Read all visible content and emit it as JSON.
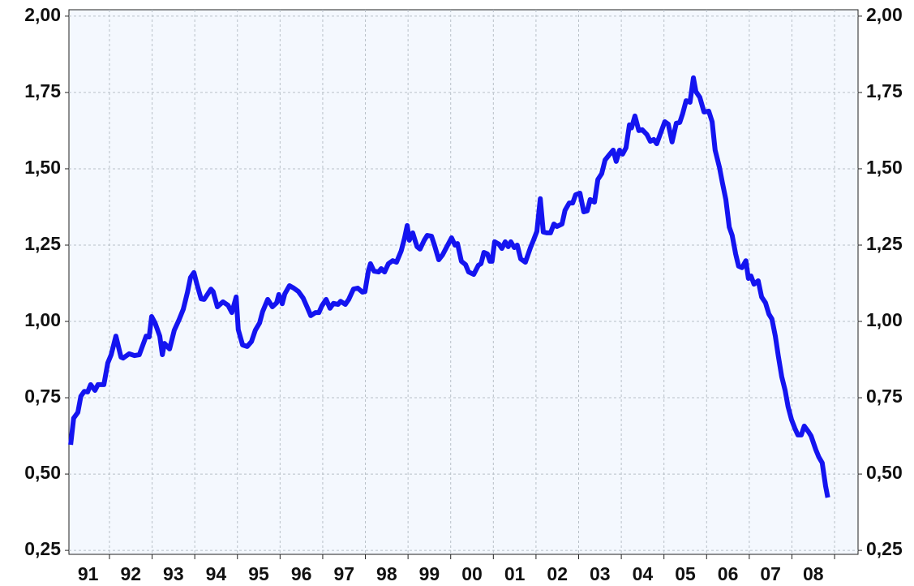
{
  "chart_data": {
    "type": "line",
    "x": [
      1991.09,
      1991.16,
      1991.26,
      1991.33,
      1991.41,
      1991.49,
      1991.56,
      1991.66,
      1991.73,
      1991.87,
      1991.96,
      1992.04,
      1992.15,
      1992.27,
      1992.32,
      1992.46,
      1992.59,
      1992.7,
      1992.86,
      1992.93,
      1992.99,
      1993.07,
      1993.18,
      1993.24,
      1993.29,
      1993.41,
      1993.52,
      1993.63,
      1993.73,
      1993.83,
      1993.9,
      1993.98,
      1994.05,
      1994.15,
      1994.22,
      1994.38,
      1994.43,
      1994.53,
      1994.66,
      1994.78,
      1994.87,
      1994.97,
      1995.02,
      1995.12,
      1995.23,
      1995.33,
      1995.42,
      1995.52,
      1995.59,
      1995.71,
      1995.82,
      1995.92,
      1995.97,
      1996.05,
      1996.11,
      1996.22,
      1996.32,
      1996.43,
      1996.54,
      1996.64,
      1996.72,
      1996.83,
      1996.91,
      1996.98,
      1997.08,
      1997.17,
      1997.25,
      1997.36,
      1997.42,
      1997.53,
      1997.61,
      1997.72,
      1997.82,
      1997.93,
      1997.99,
      1998.07,
      1998.12,
      1998.2,
      1998.31,
      1998.37,
      1998.45,
      1998.54,
      1998.64,
      1998.73,
      1998.84,
      1998.92,
      1998.98,
      1999.03,
      1999.11,
      1999.21,
      1999.28,
      1999.38,
      1999.45,
      1999.55,
      1999.62,
      1999.72,
      1999.81,
      1999.91,
      2000.02,
      2000.1,
      2000.16,
      2000.25,
      2000.35,
      2000.42,
      2000.54,
      2000.65,
      2000.71,
      2000.78,
      2000.86,
      2000.92,
      2000.97,
      2001.03,
      2001.13,
      2001.2,
      2001.28,
      2001.35,
      2001.41,
      2001.49,
      2001.56,
      2001.64,
      2001.75,
      2001.87,
      2001.94,
      2002.02,
      2002.1,
      2002.17,
      2002.25,
      2002.34,
      2002.42,
      2002.49,
      2002.61,
      2002.68,
      2002.78,
      2002.86,
      2002.93,
      2003.03,
      2003.12,
      2003.2,
      2003.27,
      2003.37,
      2003.45,
      2003.54,
      2003.62,
      2003.73,
      2003.81,
      2003.88,
      2003.96,
      2004.03,
      2004.11,
      2004.19,
      2004.24,
      2004.32,
      2004.41,
      2004.49,
      2004.6,
      2004.68,
      2004.76,
      2004.83,
      2004.93,
      2005.02,
      2005.1,
      2005.19,
      2005.29,
      2005.37,
      2005.44,
      2005.52,
      2005.61,
      2005.69,
      2005.75,
      2005.84,
      2005.94,
      2006.05,
      2006.13,
      2006.2,
      2006.3,
      2006.37,
      2006.45,
      2006.53,
      2006.6,
      2006.68,
      2006.75,
      2006.83,
      2006.92,
      2006.98,
      2007.04,
      2007.11,
      2007.21,
      2007.29,
      2007.38,
      2007.46,
      2007.53,
      2007.61,
      2007.68,
      2007.76,
      2007.84,
      2007.91,
      2007.99,
      2008.07,
      2008.14,
      2008.22,
      2008.29,
      2008.39,
      2008.45,
      2008.56,
      2008.63,
      2008.71,
      2008.79,
      2008.84
    ],
    "series": [
      {
        "color": "#1414f0",
        "values": [
          0.596,
          0.683,
          0.702,
          0.755,
          0.771,
          0.769,
          0.793,
          0.774,
          0.793,
          0.793,
          0.864,
          0.891,
          0.952,
          0.883,
          0.88,
          0.894,
          0.888,
          0.891,
          0.952,
          0.949,
          1.016,
          0.995,
          0.952,
          0.891,
          0.928,
          0.91,
          0.971,
          1.005,
          1.04,
          1.096,
          1.144,
          1.16,
          1.122,
          1.074,
          1.072,
          1.106,
          1.098,
          1.048,
          1.064,
          1.053,
          1.029,
          1.08,
          0.973,
          0.923,
          0.918,
          0.934,
          0.971,
          0.995,
          1.032,
          1.072,
          1.048,
          1.061,
          1.088,
          1.058,
          1.09,
          1.117,
          1.109,
          1.098,
          1.077,
          1.045,
          1.019,
          1.029,
          1.029,
          1.051,
          1.072,
          1.043,
          1.059,
          1.056,
          1.066,
          1.056,
          1.072,
          1.106,
          1.109,
          1.096,
          1.098,
          1.165,
          1.189,
          1.165,
          1.162,
          1.173,
          1.162,
          1.189,
          1.199,
          1.194,
          1.231,
          1.274,
          1.314,
          1.266,
          1.29,
          1.245,
          1.237,
          1.266,
          1.282,
          1.279,
          1.25,
          1.202,
          1.218,
          1.245,
          1.274,
          1.25,
          1.255,
          1.197,
          1.186,
          1.162,
          1.154,
          1.184,
          1.189,
          1.226,
          1.221,
          1.197,
          1.197,
          1.261,
          1.253,
          1.239,
          1.261,
          1.245,
          1.261,
          1.242,
          1.25,
          1.205,
          1.194,
          1.242,
          1.266,
          1.295,
          1.402,
          1.293,
          1.29,
          1.29,
          1.319,
          1.311,
          1.319,
          1.364,
          1.388,
          1.388,
          1.415,
          1.42,
          1.359,
          1.362,
          1.399,
          1.391,
          1.465,
          1.484,
          1.529,
          1.548,
          1.561,
          1.524,
          1.561,
          1.548,
          1.569,
          1.644,
          1.634,
          1.673,
          1.625,
          1.628,
          1.612,
          1.59,
          1.596,
          1.582,
          1.62,
          1.654,
          1.646,
          1.588,
          1.649,
          1.652,
          1.681,
          1.723,
          1.718,
          1.798,
          1.753,
          1.734,
          1.686,
          1.689,
          1.654,
          1.561,
          1.505,
          1.455,
          1.399,
          1.309,
          1.282,
          1.221,
          1.181,
          1.176,
          1.199,
          1.141,
          1.149,
          1.122,
          1.133,
          1.08,
          1.061,
          1.024,
          1.008,
          0.952,
          0.888,
          0.819,
          0.774,
          0.721,
          0.678,
          0.649,
          0.628,
          0.628,
          0.657,
          0.638,
          0.625,
          0.58,
          0.556,
          0.537,
          0.46,
          0.423
        ]
      }
    ],
    "xlim": [
      1991.05,
      2009.55
    ],
    "xticks": [
      {
        "value": 1991.5,
        "label": "91"
      },
      {
        "value": 1992.5,
        "label": "92"
      },
      {
        "value": 1993.5,
        "label": "93"
      },
      {
        "value": 1994.5,
        "label": "94"
      },
      {
        "value": 1995.5,
        "label": "95"
      },
      {
        "value": 1996.5,
        "label": "96"
      },
      {
        "value": 1997.5,
        "label": "97"
      },
      {
        "value": 1998.5,
        "label": "98"
      },
      {
        "value": 1999.5,
        "label": "99"
      },
      {
        "value": 2000.5,
        "label": "00"
      },
      {
        "value": 2001.5,
        "label": "01"
      },
      {
        "value": 2002.5,
        "label": "02"
      },
      {
        "value": 2003.5,
        "label": "03"
      },
      {
        "value": 2004.5,
        "label": "04"
      },
      {
        "value": 2005.5,
        "label": "05"
      },
      {
        "value": 2006.5,
        "label": "06"
      },
      {
        "value": 2007.5,
        "label": "07"
      },
      {
        "value": 2008.5,
        "label": "08"
      }
    ],
    "ylim": [
      0.237,
      2.021
    ],
    "yticks": [
      {
        "value": 0.25,
        "label": "0,25"
      },
      {
        "value": 0.5,
        "label": "0,50"
      },
      {
        "value": 0.75,
        "label": "0,75"
      },
      {
        "value": 1,
        "label": "1,00"
      },
      {
        "value": 1.25,
        "label": "1,25"
      },
      {
        "value": 1.5,
        "label": "1,50"
      },
      {
        "value": 1.75,
        "label": "1,75"
      },
      {
        "value": 2,
        "label": "2,00"
      }
    ],
    "grid": true
  }
}
